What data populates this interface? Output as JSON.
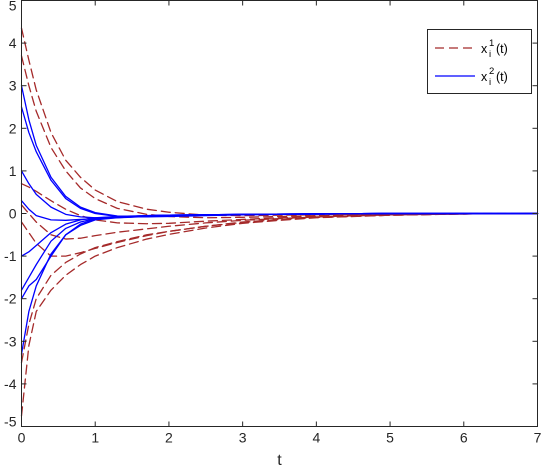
{
  "chart_data": {
    "type": "line",
    "title": "",
    "xlabel": "t",
    "ylabel": "",
    "xlim": [
      0,
      7
    ],
    "ylim": [
      -5,
      5
    ],
    "x_ticks": [
      0,
      1,
      2,
      3,
      4,
      5,
      6,
      7
    ],
    "y_ticks": [
      -5,
      -4,
      -3,
      -2,
      -1,
      0,
      1,
      2,
      3,
      4,
      5
    ],
    "grid": false,
    "legend_position": "top-right",
    "legend": [
      {
        "label": "x",
        "superscript": "1",
        "subscript": "i",
        "suffix": "(t)",
        "style": "dashed",
        "color": "#a52a2a"
      },
      {
        "label": "x",
        "superscript": "2",
        "subscript": "i",
        "suffix": "(t)",
        "style": "solid",
        "color": "#0000ff"
      }
    ],
    "series": [
      {
        "group": "x1",
        "style": "dashed",
        "color": "#a52a2a",
        "lines": [
          {
            "x": [
              0,
              0.1,
              0.2,
              0.4,
              0.6,
              0.8,
              1.0,
              1.3,
              1.7,
              2.0,
              2.5,
              3.0,
              3.5,
              4.0,
              5.0,
              6.0,
              7.0
            ],
            "y": [
              4.35,
              3.6,
              2.9,
              1.9,
              1.25,
              0.85,
              0.55,
              0.28,
              0.1,
              0.03,
              -0.04,
              -0.05,
              -0.04,
              -0.03,
              -0.01,
              0,
              0
            ]
          },
          {
            "x": [
              0,
              0.1,
              0.2,
              0.4,
              0.6,
              0.8,
              1.0,
              1.3,
              1.7,
              2.0,
              2.5,
              3.0,
              3.5,
              4.0,
              5.0,
              6.0,
              7.0
            ],
            "y": [
              3.7,
              3.0,
              2.4,
              1.55,
              1.0,
              0.6,
              0.35,
              0.12,
              -0.02,
              -0.07,
              -0.1,
              -0.09,
              -0.07,
              -0.05,
              -0.02,
              -0.01,
              0
            ]
          },
          {
            "x": [
              0,
              0.1,
              0.2,
              0.4,
              0.6,
              0.8,
              1.0,
              1.3,
              1.7,
              2.0,
              2.5,
              3.0,
              3.5,
              4.0,
              5.0,
              6.0,
              7.0
            ],
            "y": [
              0.7,
              0.62,
              0.52,
              0.3,
              0.1,
              -0.05,
              -0.15,
              -0.22,
              -0.24,
              -0.23,
              -0.18,
              -0.14,
              -0.1,
              -0.07,
              -0.03,
              -0.01,
              0
            ]
          },
          {
            "x": [
              0,
              0.1,
              0.2,
              0.4,
              0.6,
              0.8,
              1.0,
              1.3,
              1.7,
              2.0,
              2.5,
              3.0,
              3.5,
              4.0,
              5.0,
              6.0,
              7.0
            ],
            "y": [
              0.2,
              0.0,
              -0.2,
              -0.5,
              -0.6,
              -0.58,
              -0.52,
              -0.44,
              -0.36,
              -0.3,
              -0.22,
              -0.16,
              -0.12,
              -0.08,
              -0.03,
              -0.01,
              0
            ]
          },
          {
            "x": [
              0,
              0.1,
              0.2,
              0.4,
              0.6,
              0.8,
              1.0,
              1.3,
              1.7,
              2.0,
              2.5,
              3.0,
              3.5,
              4.0,
              5.0,
              6.0,
              7.0
            ],
            "y": [
              -0.2,
              -0.45,
              -0.7,
              -1.0,
              -1.0,
              -0.92,
              -0.82,
              -0.68,
              -0.52,
              -0.42,
              -0.3,
              -0.2,
              -0.14,
              -0.09,
              -0.04,
              -0.01,
              0
            ]
          },
          {
            "x": [
              0,
              0.1,
              0.2,
              0.4,
              0.6,
              0.8,
              1.0,
              1.3,
              1.7,
              2.0,
              2.5,
              3.0,
              3.5,
              4.0,
              5.0,
              6.0,
              7.0
            ],
            "y": [
              -3.5,
              -2.6,
              -2.0,
              -1.45,
              -1.15,
              -0.95,
              -0.8,
              -0.66,
              -0.5,
              -0.42,
              -0.3,
              -0.21,
              -0.14,
              -0.09,
              -0.04,
              -0.01,
              0
            ]
          },
          {
            "x": [
              0,
              0.1,
              0.2,
              0.4,
              0.6,
              0.8,
              1.0,
              1.3,
              1.7,
              2.0,
              2.5,
              3.0,
              3.5,
              4.0,
              5.0,
              6.0,
              7.0
            ],
            "y": [
              -4.75,
              -3.1,
              -2.3,
              -1.8,
              -1.45,
              -1.2,
              -1.0,
              -0.8,
              -0.6,
              -0.49,
              -0.34,
              -0.23,
              -0.16,
              -0.1,
              -0.04,
              -0.01,
              0
            ]
          }
        ]
      },
      {
        "group": "x2",
        "style": "solid",
        "color": "#0000ff",
        "lines": [
          {
            "x": [
              0,
              0.1,
              0.2,
              0.4,
              0.6,
              0.8,
              1.0,
              1.3,
              1.7,
              2.0,
              2.5,
              3.0,
              4.0,
              5.0,
              6.0,
              7.0
            ],
            "y": [
              3.0,
              2.2,
              1.6,
              0.85,
              0.4,
              0.15,
              0.02,
              -0.06,
              -0.07,
              -0.06,
              -0.04,
              -0.03,
              -0.01,
              0,
              0,
              0
            ]
          },
          {
            "x": [
              0,
              0.1,
              0.2,
              0.4,
              0.6,
              0.8,
              1.0,
              1.3,
              1.7,
              2.0,
              2.5,
              3.0,
              4.0,
              5.0,
              6.0,
              7.0
            ],
            "y": [
              2.5,
              1.9,
              1.45,
              0.78,
              0.35,
              0.12,
              0.0,
              -0.07,
              -0.08,
              -0.07,
              -0.05,
              -0.03,
              -0.01,
              0,
              0,
              0
            ]
          },
          {
            "x": [
              0,
              0.1,
              0.2,
              0.4,
              0.6,
              0.8,
              1.0,
              1.3,
              1.7,
              2.0,
              2.5,
              3.0,
              4.0,
              5.0,
              6.0,
              7.0
            ],
            "y": [
              1.0,
              0.7,
              0.45,
              0.15,
              -0.02,
              -0.08,
              -0.1,
              -0.09,
              -0.07,
              -0.05,
              -0.04,
              -0.02,
              -0.01,
              0,
              0,
              0
            ]
          },
          {
            "x": [
              0,
              0.1,
              0.2,
              0.4,
              0.6,
              0.8,
              1.0,
              1.3,
              1.7,
              2.0,
              2.5,
              3.0,
              4.0,
              5.0,
              6.0,
              7.0
            ],
            "y": [
              0.3,
              0.1,
              -0.05,
              -0.15,
              -0.16,
              -0.14,
              -0.12,
              -0.1,
              -0.07,
              -0.05,
              -0.04,
              -0.02,
              -0.01,
              0,
              0,
              0
            ]
          },
          {
            "x": [
              0,
              0.1,
              0.2,
              0.4,
              0.6,
              0.8,
              1.0,
              1.3,
              1.7,
              2.0,
              2.5,
              3.0,
              4.0,
              5.0,
              6.0,
              7.0
            ],
            "y": [
              -1.0,
              -0.9,
              -0.75,
              -0.45,
              -0.25,
              -0.15,
              -0.1,
              -0.07,
              -0.05,
              -0.04,
              -0.03,
              -0.02,
              -0.01,
              0,
              0,
              0
            ]
          },
          {
            "x": [
              0,
              0.1,
              0.2,
              0.4,
              0.6,
              0.8,
              1.0,
              1.3,
              1.7,
              2.0,
              2.5,
              3.0,
              4.0,
              5.0,
              6.0,
              7.0
            ],
            "y": [
              -1.8,
              -1.5,
              -1.2,
              -0.65,
              -0.35,
              -0.2,
              -0.12,
              -0.08,
              -0.05,
              -0.04,
              -0.03,
              -0.02,
              -0.01,
              0,
              0,
              0
            ]
          },
          {
            "x": [
              0,
              0.1,
              0.2,
              0.4,
              0.6,
              0.8,
              1.0,
              1.3,
              1.7,
              2.0,
              2.5,
              3.0,
              4.0,
              5.0,
              6.0,
              7.0
            ],
            "y": [
              -2.0,
              -1.7,
              -1.55,
              -1.0,
              -0.5,
              -0.28,
              -0.15,
              -0.1,
              -0.06,
              -0.04,
              -0.03,
              -0.02,
              -0.01,
              0,
              0,
              0
            ]
          },
          {
            "x": [
              0,
              0.1,
              0.2,
              0.4,
              0.6,
              0.8,
              1.0,
              1.3,
              1.7,
              2.0,
              2.5,
              3.0,
              4.0,
              5.0,
              6.0,
              7.0
            ],
            "y": [
              -3.3,
              -2.3,
              -1.7,
              -0.95,
              -0.5,
              -0.25,
              -0.13,
              -0.08,
              -0.05,
              -0.04,
              -0.03,
              -0.02,
              -0.01,
              0,
              0,
              0
            ]
          }
        ]
      }
    ]
  }
}
